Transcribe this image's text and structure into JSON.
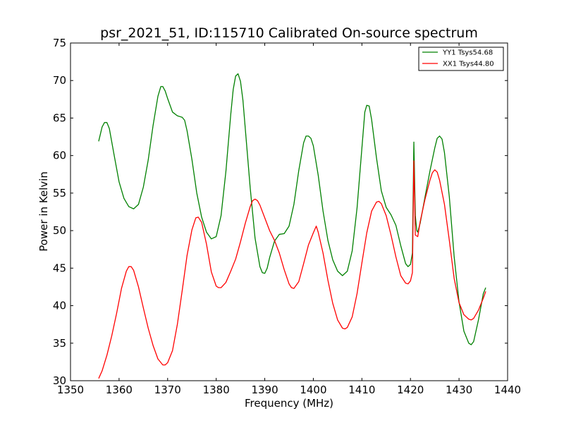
{
  "chart_data": {
    "type": "line",
    "title": "psr_2021_51, ID:115710 Calibrated On-source spectrum",
    "xlabel": "Frequency (MHz)",
    "ylabel": "Power in Kelvin",
    "xlim": [
      1350,
      1440
    ],
    "ylim": [
      30,
      75
    ],
    "xticks": [
      1350,
      1360,
      1370,
      1380,
      1390,
      1400,
      1410,
      1420,
      1430,
      1440
    ],
    "yticks": [
      30,
      35,
      40,
      45,
      50,
      55,
      60,
      65,
      70,
      75
    ],
    "grid": false,
    "legend_position": "top-right",
    "series": [
      {
        "name": "YY1 Tsys54.68",
        "color": "#008000",
        "points": [
          [
            1355.8,
            61.9
          ],
          [
            1356.5,
            63.8
          ],
          [
            1357.0,
            64.4
          ],
          [
            1357.5,
            64.4
          ],
          [
            1358.0,
            63.6
          ],
          [
            1359.0,
            60.0
          ],
          [
            1360.0,
            56.5
          ],
          [
            1361.0,
            54.3
          ],
          [
            1362.0,
            53.2
          ],
          [
            1363.0,
            52.9
          ],
          [
            1364.0,
            53.5
          ],
          [
            1365.0,
            55.8
          ],
          [
            1366.0,
            59.4
          ],
          [
            1367.0,
            64.0
          ],
          [
            1368.0,
            67.9
          ],
          [
            1368.6,
            69.2
          ],
          [
            1369.0,
            69.2
          ],
          [
            1369.5,
            68.6
          ],
          [
            1370.0,
            67.6
          ],
          [
            1371.0,
            65.8
          ],
          [
            1372.0,
            65.3
          ],
          [
            1373.0,
            65.1
          ],
          [
            1373.5,
            64.7
          ],
          [
            1374.0,
            63.3
          ],
          [
            1375.0,
            59.5
          ],
          [
            1376.0,
            55.0
          ],
          [
            1377.0,
            51.8
          ],
          [
            1378.0,
            49.8
          ],
          [
            1379.0,
            48.9
          ],
          [
            1380.0,
            49.2
          ],
          [
            1381.0,
            52.0
          ],
          [
            1382.0,
            57.9
          ],
          [
            1383.0,
            65.5
          ],
          [
            1383.5,
            68.8
          ],
          [
            1384.0,
            70.6
          ],
          [
            1384.5,
            70.9
          ],
          [
            1385.0,
            69.9
          ],
          [
            1385.5,
            67.4
          ],
          [
            1386.0,
            63.5
          ],
          [
            1387.0,
            55.7
          ],
          [
            1388.0,
            49.0
          ],
          [
            1389.0,
            45.2
          ],
          [
            1389.5,
            44.4
          ],
          [
            1390.0,
            44.3
          ],
          [
            1390.5,
            45.0
          ],
          [
            1391.0,
            46.4
          ],
          [
            1392.0,
            48.6
          ],
          [
            1393.0,
            49.5
          ],
          [
            1394.0,
            49.6
          ],
          [
            1395.0,
            50.6
          ],
          [
            1396.0,
            53.5
          ],
          [
            1397.0,
            58.0
          ],
          [
            1398.0,
            61.7
          ],
          [
            1398.5,
            62.6
          ],
          [
            1399.0,
            62.6
          ],
          [
            1399.5,
            62.3
          ],
          [
            1400.0,
            61.3
          ],
          [
            1401.0,
            57.4
          ],
          [
            1402.0,
            52.6
          ],
          [
            1403.0,
            48.7
          ],
          [
            1404.0,
            46.1
          ],
          [
            1405.0,
            44.6
          ],
          [
            1406.0,
            44.0
          ],
          [
            1407.0,
            44.6
          ],
          [
            1408.0,
            47.3
          ],
          [
            1409.0,
            53.0
          ],
          [
            1410.0,
            61.0
          ],
          [
            1410.6,
            65.8
          ],
          [
            1411.0,
            66.7
          ],
          [
            1411.5,
            66.6
          ],
          [
            1412.0,
            64.8
          ],
          [
            1413.0,
            59.7
          ],
          [
            1414.0,
            55.3
          ],
          [
            1415.0,
            53.1
          ],
          [
            1416.0,
            52.1
          ],
          [
            1417.0,
            50.7
          ],
          [
            1418.0,
            48.0
          ],
          [
            1419.0,
            45.6
          ],
          [
            1419.5,
            45.2
          ],
          [
            1420.0,
            45.5
          ],
          [
            1420.4,
            47.0
          ],
          [
            1420.7,
            61.8
          ],
          [
            1421.0,
            52.0
          ],
          [
            1421.3,
            50.0
          ],
          [
            1421.5,
            49.8
          ],
          [
            1422.0,
            51.0
          ],
          [
            1423.0,
            54.5
          ],
          [
            1424.0,
            57.9
          ],
          [
            1425.0,
            61.0
          ],
          [
            1425.5,
            62.3
          ],
          [
            1426.0,
            62.6
          ],
          [
            1426.5,
            62.2
          ],
          [
            1427.0,
            60.4
          ],
          [
            1428.0,
            54.5
          ],
          [
            1429.0,
            46.5
          ],
          [
            1430.0,
            40.5
          ],
          [
            1431.0,
            36.6
          ],
          [
            1432.0,
            35.0
          ],
          [
            1432.5,
            34.8
          ],
          [
            1433.0,
            35.2
          ],
          [
            1434.0,
            38.1
          ],
          [
            1435.0,
            41.6
          ],
          [
            1435.5,
            42.4
          ]
        ]
      },
      {
        "name": "XX1 Tsys44.80",
        "color": "#ff0000",
        "points": [
          [
            1355.8,
            30.3
          ],
          [
            1356.5,
            31.3
          ],
          [
            1357.5,
            33.4
          ],
          [
            1358.5,
            36.0
          ],
          [
            1359.5,
            39.0
          ],
          [
            1360.5,
            42.3
          ],
          [
            1361.5,
            44.6
          ],
          [
            1362.0,
            45.2
          ],
          [
            1362.5,
            45.2
          ],
          [
            1363.0,
            44.7
          ],
          [
            1364.0,
            42.5
          ],
          [
            1365.0,
            39.7
          ],
          [
            1366.0,
            37.0
          ],
          [
            1367.0,
            34.7
          ],
          [
            1368.0,
            32.9
          ],
          [
            1369.0,
            32.1
          ],
          [
            1369.5,
            32.1
          ],
          [
            1370.0,
            32.4
          ],
          [
            1371.0,
            34.0
          ],
          [
            1372.0,
            37.5
          ],
          [
            1373.0,
            42.0
          ],
          [
            1374.0,
            46.7
          ],
          [
            1375.0,
            50.1
          ],
          [
            1375.8,
            51.7
          ],
          [
            1376.3,
            51.8
          ],
          [
            1377.0,
            51.1
          ],
          [
            1378.0,
            48.2
          ],
          [
            1379.0,
            44.5
          ],
          [
            1380.0,
            42.6
          ],
          [
            1380.5,
            42.4
          ],
          [
            1381.0,
            42.4
          ],
          [
            1382.0,
            43.1
          ],
          [
            1383.0,
            44.6
          ],
          [
            1384.0,
            46.2
          ],
          [
            1385.0,
            48.5
          ],
          [
            1386.0,
            51.0
          ],
          [
            1387.0,
            53.2
          ],
          [
            1387.5,
            54.0
          ],
          [
            1388.0,
            54.2
          ],
          [
            1388.5,
            54.0
          ],
          [
            1389.0,
            53.4
          ],
          [
            1390.0,
            51.7
          ],
          [
            1391.0,
            50.0
          ],
          [
            1392.0,
            48.7
          ],
          [
            1393.0,
            47.0
          ],
          [
            1394.0,
            44.8
          ],
          [
            1395.0,
            42.9
          ],
          [
            1395.5,
            42.4
          ],
          [
            1396.0,
            42.3
          ],
          [
            1397.0,
            43.2
          ],
          [
            1398.0,
            45.6
          ],
          [
            1399.0,
            48.1
          ],
          [
            1400.0,
            49.7
          ],
          [
            1400.6,
            50.6
          ],
          [
            1401.0,
            49.8
          ],
          [
            1402.0,
            47.0
          ],
          [
            1403.0,
            43.4
          ],
          [
            1404.0,
            40.3
          ],
          [
            1405.0,
            38.1
          ],
          [
            1406.0,
            37.0
          ],
          [
            1406.5,
            36.9
          ],
          [
            1407.0,
            37.1
          ],
          [
            1408.0,
            38.5
          ],
          [
            1409.0,
            41.6
          ],
          [
            1410.0,
            45.7
          ],
          [
            1411.0,
            49.7
          ],
          [
            1412.0,
            52.6
          ],
          [
            1413.0,
            53.8
          ],
          [
            1413.5,
            53.9
          ],
          [
            1414.0,
            53.6
          ],
          [
            1415.0,
            52.0
          ],
          [
            1416.0,
            49.4
          ],
          [
            1417.0,
            46.5
          ],
          [
            1418.0,
            44.0
          ],
          [
            1419.0,
            43.0
          ],
          [
            1419.5,
            42.9
          ],
          [
            1420.0,
            43.3
          ],
          [
            1420.4,
            44.4
          ],
          [
            1420.7,
            59.3
          ],
          [
            1421.0,
            49.4
          ],
          [
            1421.5,
            49.2
          ],
          [
            1422.0,
            51.2
          ],
          [
            1423.0,
            54.2
          ],
          [
            1424.0,
            56.7
          ],
          [
            1424.5,
            57.7
          ],
          [
            1425.0,
            58.1
          ],
          [
            1425.5,
            57.8
          ],
          [
            1426.0,
            56.7
          ],
          [
            1427.0,
            53.5
          ],
          [
            1428.0,
            48.7
          ],
          [
            1429.0,
            43.6
          ],
          [
            1430.0,
            40.4
          ],
          [
            1431.0,
            38.8
          ],
          [
            1432.0,
            38.2
          ],
          [
            1432.5,
            38.1
          ],
          [
            1433.0,
            38.3
          ],
          [
            1434.0,
            39.4
          ],
          [
            1435.0,
            41.0
          ],
          [
            1435.5,
            41.9
          ]
        ]
      }
    ]
  }
}
